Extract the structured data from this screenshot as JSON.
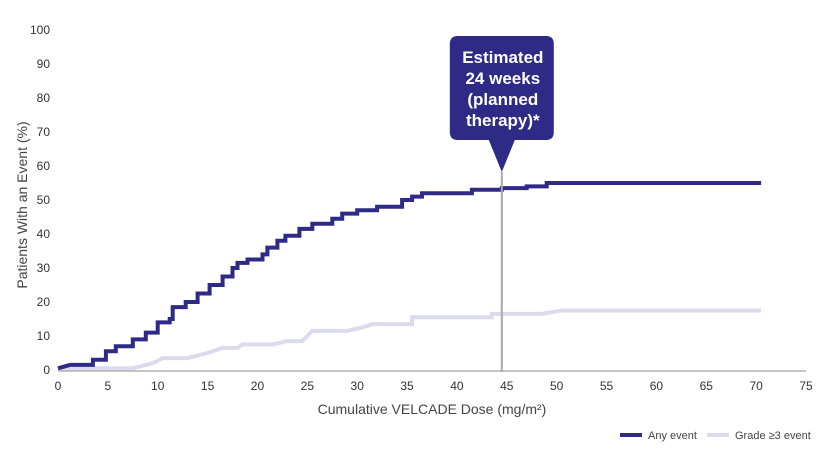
{
  "chart_data": {
    "type": "line",
    "title": "",
    "xlabel": "Cumulative VELCADE Dose (mg/m²)",
    "ylabel": "Patients With an Event (%)",
    "xlim": [
      0,
      75
    ],
    "ylim": [
      0,
      100
    ],
    "xticks": [
      0,
      5,
      10,
      15,
      20,
      25,
      30,
      35,
      40,
      45,
      50,
      55,
      60,
      65,
      70,
      75
    ],
    "yticks": [
      0,
      10,
      20,
      30,
      40,
      50,
      60,
      70,
      80,
      90,
      100
    ],
    "grid": false,
    "legend_position": "bottom-right",
    "series": [
      {
        "name": "Any event",
        "color": "#2e2a86",
        "step": true,
        "points": [
          [
            0,
            0.5
          ],
          [
            1.2,
            1.5
          ],
          [
            3.5,
            1.5
          ],
          [
            3.5,
            3
          ],
          [
            4.8,
            3
          ],
          [
            4.8,
            5.5
          ],
          [
            5.8,
            5.5
          ],
          [
            5.8,
            7
          ],
          [
            7.5,
            7
          ],
          [
            7.5,
            9
          ],
          [
            8.8,
            9
          ],
          [
            8.8,
            11
          ],
          [
            10,
            11
          ],
          [
            10,
            14
          ],
          [
            11.2,
            14
          ],
          [
            11.2,
            15
          ],
          [
            11.5,
            15
          ],
          [
            11.5,
            18.5
          ],
          [
            12.8,
            18.5
          ],
          [
            12.8,
            20
          ],
          [
            14,
            20
          ],
          [
            14,
            22.5
          ],
          [
            15.2,
            22.5
          ],
          [
            15.2,
            25
          ],
          [
            16.5,
            25
          ],
          [
            16.5,
            27.5
          ],
          [
            17.5,
            27.5
          ],
          [
            17.5,
            30
          ],
          [
            18,
            30
          ],
          [
            18,
            31.5
          ],
          [
            19,
            31.5
          ],
          [
            19,
            32.5
          ],
          [
            20.5,
            32.5
          ],
          [
            20.5,
            34
          ],
          [
            21,
            34
          ],
          [
            21,
            36
          ],
          [
            22,
            36
          ],
          [
            22,
            38
          ],
          [
            22.8,
            38
          ],
          [
            22.8,
            39.5
          ],
          [
            24.2,
            39.5
          ],
          [
            24.2,
            41.5
          ],
          [
            25.5,
            41.5
          ],
          [
            25.5,
            43
          ],
          [
            27.5,
            43
          ],
          [
            27.5,
            44.5
          ],
          [
            28.5,
            44.5
          ],
          [
            28.5,
            46
          ],
          [
            30,
            46
          ],
          [
            30,
            47
          ],
          [
            32,
            47
          ],
          [
            32,
            48
          ],
          [
            34.5,
            48
          ],
          [
            34.5,
            50
          ],
          [
            35.5,
            50
          ],
          [
            35.5,
            51
          ],
          [
            36.5,
            51
          ],
          [
            36.5,
            52
          ],
          [
            41.5,
            52
          ],
          [
            41.5,
            53
          ],
          [
            44.5,
            53
          ],
          [
            44.5,
            53.5
          ],
          [
            47,
            53.5
          ],
          [
            47,
            54
          ],
          [
            49,
            54
          ],
          [
            49,
            55
          ],
          [
            70.5,
            55
          ]
        ]
      },
      {
        "name": "Grade ≥3 event",
        "color": "#dcdbee",
        "step": true,
        "points": [
          [
            0,
            0.5
          ],
          [
            7.5,
            0.5
          ],
          [
            9.5,
            2
          ],
          [
            10.5,
            3.5
          ],
          [
            13,
            3.5
          ],
          [
            15,
            5
          ],
          [
            16.5,
            6.5
          ],
          [
            18,
            6.5
          ],
          [
            18.5,
            7.5
          ],
          [
            21.5,
            7.5
          ],
          [
            23,
            8.5
          ],
          [
            24.5,
            8.5
          ],
          [
            25.5,
            11.5
          ],
          [
            29,
            11.5
          ],
          [
            30.5,
            12.5
          ],
          [
            31.5,
            13.5
          ],
          [
            35.5,
            13.5
          ],
          [
            35.5,
            15.5
          ],
          [
            43.5,
            15.5
          ],
          [
            43.5,
            16.5
          ],
          [
            48.5,
            16.5
          ],
          [
            50.5,
            17.5
          ],
          [
            70.5,
            17.5
          ]
        ]
      }
    ],
    "annotation": {
      "x": 44.5,
      "lines": [
        "Estimated",
        "24 weeks",
        "(planned",
        "therapy)*"
      ],
      "color": "#2e2a86"
    }
  }
}
